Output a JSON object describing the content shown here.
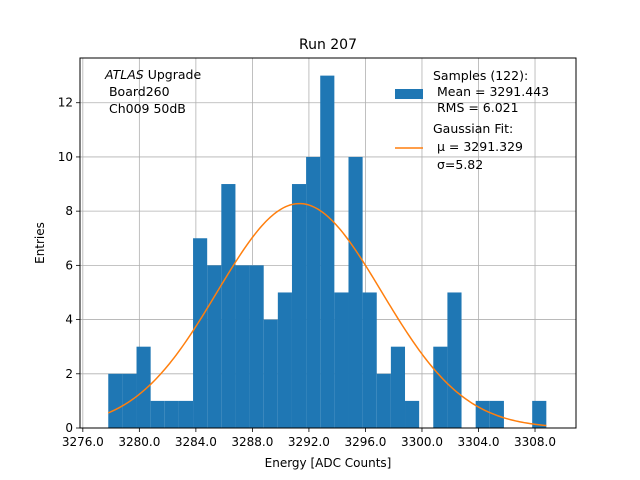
{
  "chart_data": {
    "type": "histogram",
    "title": "Run 207",
    "xlabel": "Energy [ADC Counts]",
    "ylabel": "Entries",
    "xlim": [
      3275.8,
      3310.9
    ],
    "ylim": [
      0,
      13.65
    ],
    "grid": true,
    "x_ticks": [
      3276.0,
      3280.0,
      3284.0,
      3288.0,
      3292.0,
      3296.0,
      3300.0,
      3304.0,
      3308.0
    ],
    "x_tick_labels": [
      "3276.0",
      "3280.0",
      "3284.0",
      "3288.0",
      "3292.0",
      "3296.0",
      "3300.0",
      "3304.0",
      "3308.0"
    ],
    "y_ticks": [
      0,
      2,
      4,
      6,
      8,
      10,
      12
    ],
    "y_tick_labels": [
      "0",
      "2",
      "4",
      "6",
      "8",
      "10",
      "12"
    ],
    "bin_start": 3277.8,
    "bin_width": 1.0,
    "counts": [
      2,
      2,
      3,
      1,
      1,
      1,
      7,
      6,
      9,
      6,
      6,
      4,
      5,
      9,
      10,
      13,
      5,
      10,
      5,
      2,
      3,
      1,
      0,
      3,
      5,
      0,
      1,
      1,
      0,
      0,
      1
    ],
    "bar_color": "#1f77b4",
    "fit": {
      "type": "gaussian",
      "mu": 3291.329,
      "sigma": 5.82,
      "amplitude": 8.28,
      "x_range": [
        3277.8,
        3308.8
      ],
      "color": "#ff7f0e"
    },
    "legend": {
      "location": "upper right",
      "samples_label": [
        "Samples (122):",
        " Mean = 3291.443",
        " RMS = 6.021"
      ],
      "fit_label": [
        "Gaussian Fit:",
        " μ = 3291.329",
        " σ=5.82"
      ]
    },
    "annotation": {
      "atlas": "ATLAS",
      "upgrade": " Upgrade",
      "lines": [
        " Board260",
        " Ch009 50dB"
      ]
    }
  }
}
